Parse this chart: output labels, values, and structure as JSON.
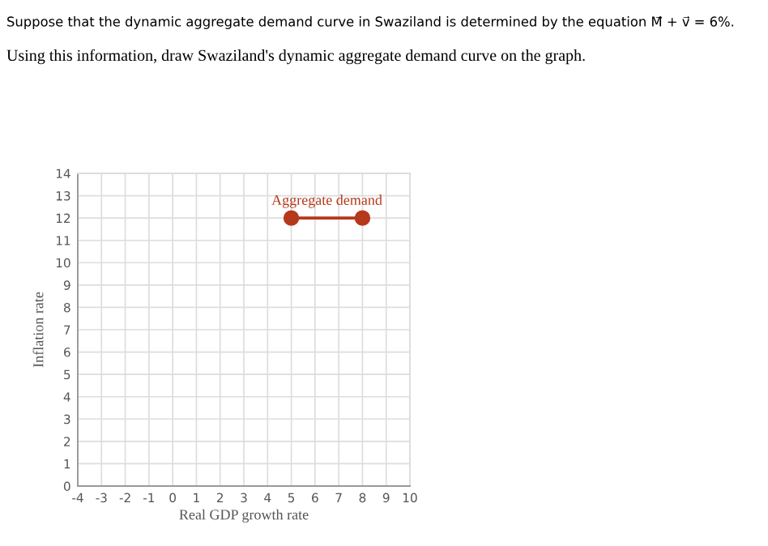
{
  "chart_data": {
    "type": "line",
    "title": "Suppose that the dynamic aggregate demand curve in Swaziland is determined by the equation M⃗ + v⃗ = 6%.",
    "subtitle": "Using this information, draw Swaziland's dynamic aggregate demand curve on the graph.",
    "xlabel": "Real GDP growth rate",
    "ylabel": "Inflation rate",
    "series": [
      {
        "name": "Aggregate demand",
        "color": "#b5391b",
        "x": [
          5,
          8
        ],
        "values": [
          12,
          12
        ]
      }
    ],
    "xlim": [
      -4,
      10
    ],
    "xticks": [
      -4,
      -3,
      -2,
      -1,
      0,
      1,
      2,
      3,
      4,
      5,
      6,
      7,
      8,
      9,
      10
    ],
    "ylim": [
      0,
      14
    ],
    "yticks": [
      0,
      1,
      2,
      3,
      4,
      5,
      6,
      7,
      8,
      9,
      10,
      11,
      12,
      13,
      14
    ],
    "grid": true,
    "marker": "circle",
    "line_style": "solid"
  }
}
